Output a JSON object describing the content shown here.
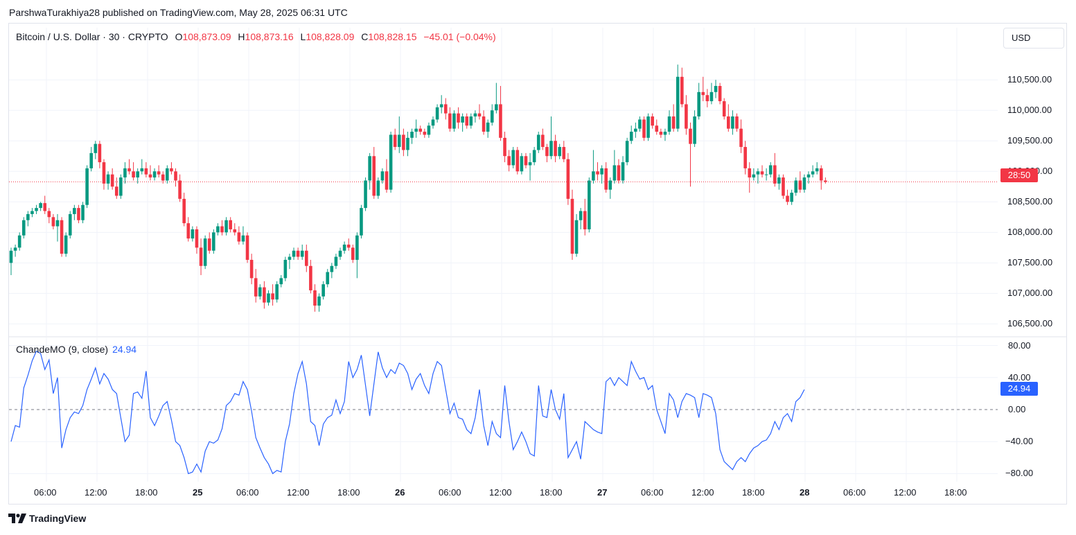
{
  "publisher": "ParshwaTurakhiya28 published on TradingView.com, May 28, 2025 06:31 UTC",
  "symbol": {
    "name": "Bitcoin / U.S. Dollar · 30 · CRYPTO",
    "o_label": "O",
    "o": "108,873.09",
    "h_label": "H",
    "h": "108,873.16",
    "l_label": "L",
    "l": "108,828.09",
    "c_label": "C",
    "c": "108,828.15",
    "change": "−45.01 (−0.04%)"
  },
  "currency_button": "USD",
  "price_axis": [
    "110,500.00",
    "110,000.00",
    "109,500.00",
    "109,000.00",
    "108,500.00",
    "108,000.00",
    "107,500.00",
    "107,000.00",
    "106,500.00"
  ],
  "countdown_tag": "28:50",
  "indicator": {
    "name": "ChandeMO (9, close)",
    "value": "24.94",
    "axis": [
      "80.00",
      "40.00",
      "0.00",
      "−40.00",
      "−80.00"
    ]
  },
  "time_axis": [
    "06:00",
    "12:00",
    "18:00",
    "25",
    "06:00",
    "12:00",
    "18:00",
    "26",
    "06:00",
    "12:00",
    "18:00",
    "27",
    "06:00",
    "12:00",
    "18:00",
    "28",
    "06:00",
    "12:00",
    "18:00"
  ],
  "brand": "TradingView",
  "colors": {
    "up": "#089981",
    "down": "#f23645",
    "line": "#2962ff",
    "grid": "#f0f3fa"
  },
  "chart_data": {
    "type": "candlestick",
    "price_range": [
      106300,
      110900
    ],
    "cmo_range": [
      -90,
      90
    ],
    "current_price": 108828.15,
    "candles_ohlc": [
      [
        107500,
        107750,
        107300,
        107700
      ],
      [
        107700,
        107800,
        107600,
        107750
      ],
      [
        107750,
        108000,
        107700,
        107950
      ],
      [
        107950,
        108250,
        107900,
        108200
      ],
      [
        108200,
        108350,
        108100,
        108300
      ],
      [
        108300,
        108400,
        108250,
        108350
      ],
      [
        108350,
        108450,
        108300,
        108400
      ],
      [
        108400,
        108500,
        108350,
        108480
      ],
      [
        108480,
        108600,
        108300,
        108350
      ],
      [
        108350,
        108400,
        108150,
        108250
      ],
      [
        108250,
        108300,
        108050,
        108100
      ],
      [
        108100,
        108300,
        107850,
        108200
      ],
      [
        108200,
        108250,
        107600,
        107650
      ],
      [
        107650,
        108000,
        107600,
        107950
      ],
      [
        107950,
        108350,
        107900,
        108300
      ],
      [
        108300,
        108450,
        108200,
        108400
      ],
      [
        108400,
        108450,
        108150,
        108200
      ],
      [
        108200,
        108500,
        108150,
        108450
      ],
      [
        108450,
        109100,
        108400,
        109050
      ],
      [
        109050,
        109400,
        109000,
        109300
      ],
      [
        109300,
        109500,
        109200,
        109450
      ],
      [
        109450,
        109500,
        109050,
        109150
      ],
      [
        109150,
        109200,
        108700,
        108800
      ],
      [
        108800,
        109000,
        108700,
        108950
      ],
      [
        108950,
        109050,
        108700,
        108750
      ],
      [
        108750,
        108900,
        108550,
        108600
      ],
      [
        108600,
        108950,
        108550,
        108900
      ],
      [
        108900,
        109150,
        108800,
        109050
      ],
      [
        109050,
        109200,
        108950,
        109000
      ],
      [
        109000,
        109150,
        108850,
        108900
      ],
      [
        108900,
        109050,
        108800,
        109000
      ],
      [
        109000,
        109200,
        108950,
        109050
      ],
      [
        109050,
        109150,
        108900,
        108950
      ],
      [
        108950,
        109100,
        108850,
        108900
      ],
      [
        108900,
        109050,
        108850,
        109000
      ],
      [
        109000,
        109100,
        108900,
        108950
      ],
      [
        108950,
        109000,
        108800,
        108850
      ],
      [
        108850,
        109100,
        108800,
        109050
      ],
      [
        109050,
        109150,
        108950,
        109000
      ],
      [
        109000,
        109050,
        108750,
        108850
      ],
      [
        108850,
        108950,
        108500,
        108550
      ],
      [
        108550,
        108650,
        108100,
        108150
      ],
      [
        108150,
        108250,
        107850,
        107900
      ],
      [
        107900,
        108100,
        107850,
        108050
      ],
      [
        108050,
        108100,
        107650,
        107750
      ],
      [
        107750,
        107900,
        107300,
        107450
      ],
      [
        107450,
        107950,
        107400,
        107900
      ],
      [
        107900,
        108000,
        107650,
        107700
      ],
      [
        107700,
        108050,
        107650,
        108000
      ],
      [
        108000,
        108150,
        107950,
        108100
      ],
      [
        108100,
        108200,
        107950,
        108000
      ],
      [
        108000,
        108250,
        107950,
        108200
      ],
      [
        108200,
        108250,
        108000,
        108050
      ],
      [
        108050,
        108150,
        107950,
        108000
      ],
      [
        108000,
        108100,
        107800,
        107850
      ],
      [
        107850,
        108100,
        107800,
        107950
      ],
      [
        107950,
        108000,
        107500,
        107550
      ],
      [
        107550,
        107650,
        107150,
        107250
      ],
      [
        107250,
        107400,
        106850,
        106950
      ],
      [
        106950,
        107150,
        106900,
        107100
      ],
      [
        107100,
        107200,
        106750,
        106850
      ],
      [
        106850,
        107050,
        106800,
        107000
      ],
      [
        107000,
        107150,
        106800,
        106900
      ],
      [
        106900,
        107200,
        106850,
        107150
      ],
      [
        107150,
        107300,
        107100,
        107250
      ],
      [
        107250,
        107600,
        107200,
        107550
      ],
      [
        107550,
        107650,
        107400,
        107600
      ],
      [
        107600,
        107750,
        107550,
        107700
      ],
      [
        107700,
        107750,
        107550,
        107600
      ],
      [
        107600,
        107800,
        107550,
        107700
      ],
      [
        107700,
        107800,
        107350,
        107450
      ],
      [
        107450,
        107550,
        107000,
        107050
      ],
      [
        107050,
        107150,
        106700,
        106800
      ],
      [
        106800,
        107000,
        106700,
        106950
      ],
      [
        106950,
        107200,
        106900,
        107150
      ],
      [
        107150,
        107400,
        107100,
        107350
      ],
      [
        107350,
        107500,
        107250,
        107450
      ],
      [
        107450,
        107650,
        107400,
        107600
      ],
      [
        107600,
        107750,
        107550,
        107700
      ],
      [
        107700,
        107850,
        107650,
        107800
      ],
      [
        107800,
        107900,
        107700,
        107750
      ],
      [
        107750,
        107800,
        107500,
        107550
      ],
      [
        107550,
        108000,
        107250,
        107950
      ],
      [
        107950,
        108450,
        107900,
        108400
      ],
      [
        108400,
        108900,
        108350,
        108850
      ],
      [
        108850,
        109300,
        108700,
        109250
      ],
      [
        109250,
        109400,
        108550,
        108600
      ],
      [
        108600,
        108900,
        108550,
        108850
      ],
      [
        108850,
        109050,
        108800,
        109000
      ],
      [
        109000,
        109200,
        108650,
        108700
      ],
      [
        108700,
        109650,
        108650,
        109600
      ],
      [
        109600,
        109700,
        109350,
        109400
      ],
      [
        109400,
        109900,
        109300,
        109600
      ],
      [
        109600,
        109700,
        109250,
        109350
      ],
      [
        109350,
        109650,
        109250,
        109550
      ],
      [
        109550,
        109700,
        109450,
        109650
      ],
      [
        109650,
        109850,
        109550,
        109700
      ],
      [
        109700,
        109750,
        109600,
        109650
      ],
      [
        109650,
        109700,
        109550,
        109600
      ],
      [
        109600,
        109800,
        109550,
        109750
      ],
      [
        109750,
        109900,
        109700,
        109850
      ],
      [
        109850,
        110100,
        109800,
        110050
      ],
      [
        110050,
        110250,
        109950,
        110100
      ],
      [
        110100,
        110200,
        109850,
        109950
      ],
      [
        109950,
        110050,
        109650,
        109700
      ],
      [
        109700,
        110000,
        109650,
        109950
      ],
      [
        109950,
        110050,
        109700,
        109800
      ],
      [
        109800,
        109950,
        109650,
        109900
      ],
      [
        109900,
        109950,
        109700,
        109750
      ],
      [
        109750,
        109950,
        109700,
        109900
      ],
      [
        109900,
        110000,
        109800,
        109950
      ],
      [
        109950,
        110100,
        109850,
        109900
      ],
      [
        109900,
        110000,
        109600,
        109650
      ],
      [
        109650,
        109850,
        109550,
        109800
      ],
      [
        109800,
        110100,
        109750,
        110000
      ],
      [
        110000,
        110450,
        109950,
        110100
      ],
      [
        110100,
        110400,
        109500,
        109550
      ],
      [
        109550,
        109650,
        109150,
        109250
      ],
      [
        109250,
        109350,
        109000,
        109100
      ],
      [
        109100,
        109400,
        109050,
        109350
      ],
      [
        109350,
        109400,
        108950,
        109000
      ],
      [
        109000,
        109300,
        108950,
        109250
      ],
      [
        109250,
        109300,
        109050,
        109100
      ],
      [
        109100,
        109300,
        108850,
        109150
      ],
      [
        109150,
        109400,
        109100,
        109350
      ],
      [
        109350,
        109650,
        109300,
        109600
      ],
      [
        109600,
        109700,
        109350,
        109400
      ],
      [
        109400,
        109450,
        109150,
        109250
      ],
      [
        109250,
        109900,
        109200,
        109500
      ],
      [
        109500,
        109600,
        109150,
        109250
      ],
      [
        109250,
        109450,
        109200,
        109400
      ],
      [
        109400,
        109500,
        109150,
        109200
      ],
      [
        109200,
        109300,
        108450,
        108550
      ],
      [
        108550,
        108700,
        107550,
        107650
      ],
      [
        107650,
        108300,
        107600,
        108200
      ],
      [
        108200,
        108400,
        108050,
        108350
      ],
      [
        108350,
        108550,
        107950,
        108050
      ],
      [
        108050,
        108900,
        108000,
        108850
      ],
      [
        108850,
        109350,
        108800,
        109000
      ],
      [
        109000,
        109150,
        108850,
        108950
      ],
      [
        108950,
        109100,
        108800,
        109050
      ],
      [
        109050,
        109150,
        108650,
        108700
      ],
      [
        108700,
        108900,
        108550,
        108850
      ],
      [
        108850,
        109350,
        108800,
        109100
      ],
      [
        109100,
        109200,
        108800,
        108850
      ],
      [
        108850,
        109250,
        108800,
        109150
      ],
      [
        109150,
        109550,
        109100,
        109500
      ],
      [
        109500,
        109750,
        109450,
        109650
      ],
      [
        109650,
        109800,
        109550,
        109700
      ],
      [
        109700,
        109900,
        109650,
        109850
      ],
      [
        109850,
        109900,
        109500,
        109550
      ],
      [
        109550,
        109950,
        109500,
        109900
      ],
      [
        109900,
        109950,
        109700,
        109750
      ],
      [
        109750,
        109850,
        109600,
        109650
      ],
      [
        109650,
        109700,
        109550,
        109600
      ],
      [
        109600,
        109700,
        109500,
        109650
      ],
      [
        109650,
        110000,
        109600,
        109900
      ],
      [
        109900,
        110100,
        109650,
        109700
      ],
      [
        109700,
        110750,
        109650,
        110550
      ],
      [
        110550,
        110700,
        110050,
        110100
      ],
      [
        110100,
        110250,
        109600,
        109700
      ],
      [
        109700,
        109800,
        108750,
        109450
      ],
      [
        109450,
        110000,
        109400,
        109900
      ],
      [
        109900,
        110450,
        109850,
        110300
      ],
      [
        110300,
        110550,
        110150,
        110250
      ],
      [
        110250,
        110350,
        110050,
        110150
      ],
      [
        110150,
        110450,
        110100,
        110300
      ],
      [
        110300,
        110500,
        110200,
        110400
      ],
      [
        110400,
        110450,
        110100,
        110150
      ],
      [
        110150,
        110200,
        109850,
        109900
      ],
      [
        109900,
        110100,
        109650,
        109700
      ],
      [
        109700,
        110000,
        109600,
        109900
      ],
      [
        109900,
        109950,
        109650,
        109700
      ],
      [
        109700,
        109850,
        109300,
        109400
      ],
      [
        109400,
        109500,
        108950,
        109050
      ],
      [
        109050,
        109150,
        108650,
        108900
      ],
      [
        108900,
        109050,
        108850,
        108950
      ],
      [
        108950,
        109050,
        108800,
        109000
      ],
      [
        109000,
        109100,
        108900,
        108950
      ],
      [
        108950,
        109050,
        108850,
        108950
      ],
      [
        108950,
        109150,
        108900,
        109100
      ],
      [
        109100,
        109300,
        108750,
        108800
      ],
      [
        108800,
        108950,
        108700,
        108900
      ],
      [
        108900,
        108950,
        108550,
        108600
      ],
      [
        108600,
        108700,
        108450,
        108500
      ],
      [
        108500,
        108700,
        108450,
        108650
      ],
      [
        108650,
        108900,
        108600,
        108850
      ],
      [
        108850,
        109000,
        108650,
        108700
      ],
      [
        108700,
        108950,
        108650,
        108900
      ],
      [
        108900,
        109000,
        108800,
        108950
      ],
      [
        108950,
        109100,
        108900,
        109000
      ],
      [
        109000,
        109150,
        108950,
        109050
      ],
      [
        109050,
        109100,
        108700,
        108850
      ],
      [
        108850,
        108900,
        108800,
        108828
      ]
    ],
    "cmo_values": [
      -40,
      -20,
      -22,
      27,
      43,
      61,
      73,
      70,
      50,
      62,
      20,
      40,
      -48,
      -25,
      -10,
      -3,
      -5,
      5,
      25,
      38,
      52,
      32,
      45,
      38,
      25,
      20,
      -10,
      -40,
      -32,
      20,
      22,
      14,
      48,
      -10,
      -20,
      -8,
      5,
      10,
      -13,
      -40,
      -45,
      -60,
      -80,
      -78,
      -68,
      -78,
      -52,
      -40,
      -42,
      -38,
      -24,
      5,
      10,
      20,
      18,
      35,
      25,
      -2,
      -35,
      -48,
      -60,
      -68,
      -80,
      -76,
      -78,
      -40,
      -18,
      20,
      45,
      60,
      32,
      -15,
      -20,
      -45,
      -18,
      -10,
      -7,
      12,
      -5,
      10,
      60,
      40,
      50,
      68,
      30,
      -8,
      32,
      72,
      52,
      40,
      50,
      45,
      58,
      55,
      45,
      25,
      38,
      45,
      30,
      20,
      45,
      60,
      55,
      25,
      -5,
      8,
      -10,
      -12,
      -25,
      -30,
      -10,
      25,
      -20,
      -45,
      -15,
      -30,
      -35,
      30,
      -15,
      -50,
      -40,
      -28,
      -40,
      -55,
      -58,
      30,
      -8,
      -10,
      25,
      0,
      -12,
      20,
      -60,
      -50,
      -40,
      -62,
      -15,
      -20,
      -25,
      -28,
      -30,
      35,
      40,
      30,
      40,
      35,
      30,
      60,
      48,
      38,
      40,
      25,
      30,
      0,
      -15,
      -30,
      20,
      12,
      -10,
      10,
      20,
      18,
      15,
      -10,
      20,
      18,
      15,
      -5,
      -50,
      -65,
      -70,
      -75,
      -65,
      -60,
      -65,
      -55,
      -48,
      -45,
      -40,
      -38,
      -30,
      -15,
      -25,
      -10,
      -5,
      -15,
      10,
      15,
      24.94
    ]
  }
}
